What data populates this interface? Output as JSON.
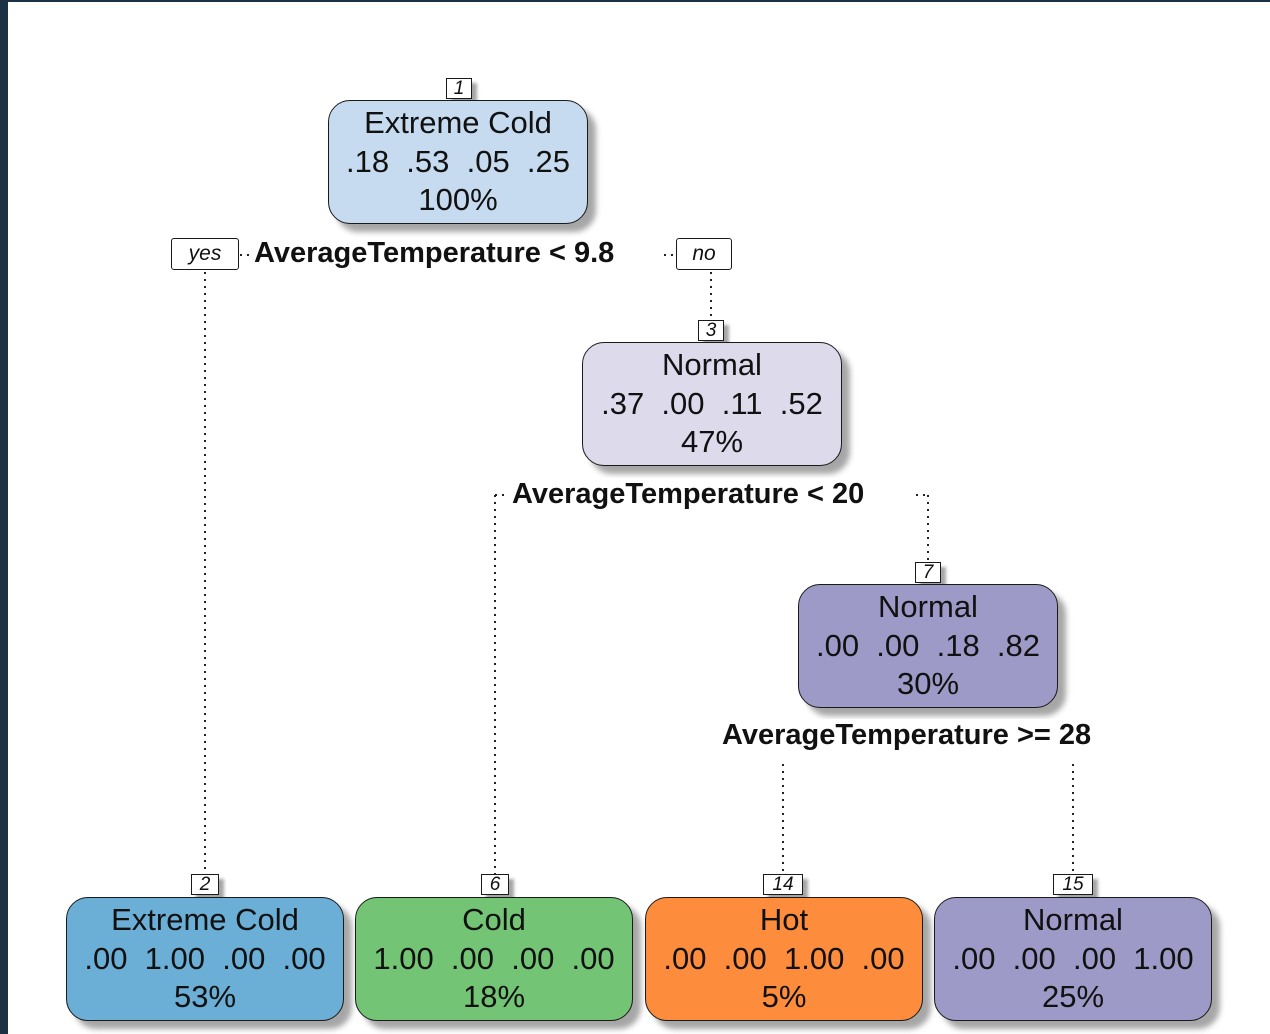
{
  "tree": {
    "nodes": [
      {
        "id": "1",
        "label": "Extreme Cold",
        "probs": ".18  .53  .05  .25",
        "pct": "100%",
        "color": "#c6dbef"
      },
      {
        "id": "3",
        "label": "Normal",
        "probs": ".37  .00  .11  .52",
        "pct": "47%",
        "color": "#dcdaeb"
      },
      {
        "id": "7",
        "label": "Normal",
        "probs": ".00  .00  .18  .82",
        "pct": "30%",
        "color": "#9e9ac8"
      },
      {
        "id": "2",
        "label": "Extreme Cold",
        "probs": ".00  1.00  .00  .00",
        "pct": "53%",
        "color": "#6baed6"
      },
      {
        "id": "6",
        "label": "Cold",
        "probs": "1.00  .00  .00  .00",
        "pct": "18%",
        "color": "#74c476"
      },
      {
        "id": "14",
        "label": "Hot",
        "probs": ".00  .00  1.00  .00",
        "pct": "5%",
        "color": "#fd8d3c"
      },
      {
        "id": "15",
        "label": "Normal",
        "probs": ".00  .00  .00  1.00",
        "pct": "25%",
        "color": "#9e9ac8"
      }
    ],
    "splits": {
      "s1": "AverageTemperature < 9.8",
      "s3": "AverageTemperature < 20",
      "s7": "AverageTemperature >= 28"
    },
    "yes_label": "yes",
    "no_label": "no"
  }
}
